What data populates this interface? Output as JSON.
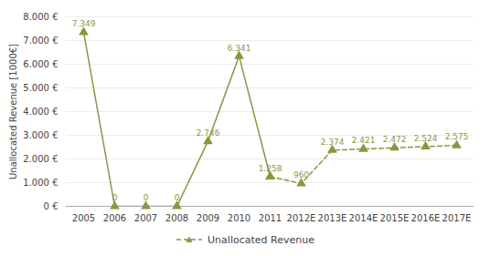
{
  "chart_data": {
    "type": "line",
    "ylabel": "Unallocated Revenue [1000€]",
    "categories": [
      "2005",
      "2006",
      "2007",
      "2008",
      "2009",
      "2010",
      "2011",
      "2012E",
      "2013E",
      "2014E",
      "2015E",
      "2016E",
      "2017E"
    ],
    "series": [
      {
        "color": "#8B9640",
        "line_style": "solid",
        "marker": "triangle",
        "values": [
          7349,
          0,
          0,
          0,
          2746,
          6341,
          1258,
          null,
          null,
          null,
          null,
          null,
          null
        ],
        "value_labels": [
          "7.349",
          "0",
          "0",
          "0",
          "2.746",
          "6.341",
          "1.258",
          null,
          null,
          null,
          null,
          null,
          null
        ]
      },
      {
        "name": "Unallocated Revenue",
        "color": "#8B9640",
        "line_style": "dashed",
        "marker": "triangle",
        "values": [
          null,
          null,
          null,
          null,
          null,
          null,
          1258,
          960,
          2374,
          2421,
          2472,
          2524,
          2575
        ],
        "value_labels": [
          null,
          null,
          null,
          null,
          null,
          null,
          null,
          "960",
          "2.374",
          "2.421",
          "2.472",
          "2.524",
          "2.575"
        ]
      }
    ],
    "ylim": [
      0,
      8000
    ],
    "yticks": [
      {
        "value": 0,
        "label": "0 €"
      },
      {
        "value": 1000,
        "label": "1.000 €"
      },
      {
        "value": 2000,
        "label": "2.000 €"
      },
      {
        "value": 3000,
        "label": "3.000 €"
      },
      {
        "value": 4000,
        "label": "4.000 €"
      },
      {
        "value": 5000,
        "label": "5.000 €"
      },
      {
        "value": 6000,
        "label": "6.000 €"
      },
      {
        "value": 7000,
        "label": "7.000 €"
      },
      {
        "value": 8000,
        "label": "8.000 €"
      }
    ],
    "grid": true,
    "data_labels": true,
    "legend": "bottom"
  }
}
